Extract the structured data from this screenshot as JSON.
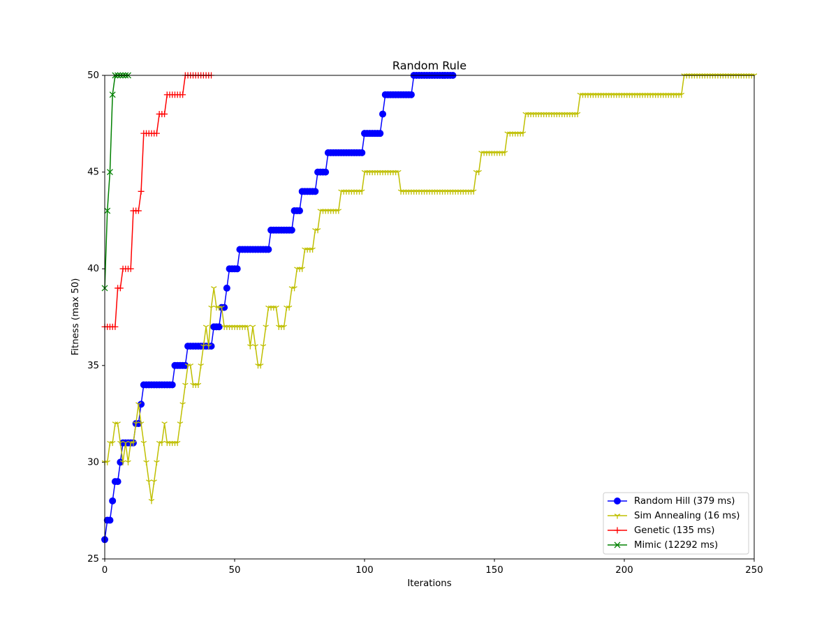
{
  "chart_data": {
    "type": "line",
    "title": "Random Rule",
    "xlabel": "Iterations",
    "ylabel": "Fitness (max 50)",
    "xlim": [
      0,
      250
    ],
    "xticks": [
      0,
      50,
      100,
      150,
      200,
      250
    ],
    "ylim": [
      25,
      50
    ],
    "yticks": [
      25,
      30,
      35,
      40,
      45,
      50
    ],
    "legend": "lower right",
    "series": [
      {
        "name": "Random Hill (379 ms)",
        "color": "#0000ff",
        "marker": "o",
        "x": [
          0,
          1,
          2,
          3,
          4,
          5,
          6,
          7,
          8,
          9,
          10,
          11,
          12,
          13,
          14,
          15,
          16,
          17,
          18,
          19,
          20,
          21,
          22,
          23,
          24,
          25,
          26,
          27,
          28,
          29,
          30,
          31,
          32,
          33,
          34,
          35,
          36,
          37,
          38,
          39,
          40,
          41,
          42,
          43,
          44,
          45,
          46,
          47,
          48,
          49,
          50,
          51,
          52,
          53,
          54,
          55,
          56,
          57,
          58,
          59,
          60,
          61,
          62,
          63,
          64,
          65,
          66,
          67,
          68,
          69,
          70,
          71,
          72,
          73,
          74,
          75,
          76,
          77,
          78,
          79,
          80,
          81,
          82,
          83,
          84,
          85,
          86,
          87,
          88,
          89,
          90,
          91,
          92,
          93,
          94,
          95,
          96,
          97,
          98,
          99,
          100,
          101,
          102,
          103,
          104,
          105,
          106,
          107,
          108,
          109,
          110,
          111,
          112,
          113,
          114,
          115,
          116,
          117,
          118,
          119,
          120,
          121,
          122,
          123,
          124,
          125,
          126,
          127,
          128,
          129,
          130,
          131,
          132,
          133,
          134
        ],
        "values": [
          26,
          27,
          27,
          28,
          29,
          29,
          30,
          31,
          31,
          31,
          31,
          31,
          32,
          32,
          33,
          34,
          34,
          34,
          34,
          34,
          34,
          34,
          34,
          34,
          34,
          34,
          34,
          35,
          35,
          35,
          35,
          35,
          36,
          36,
          36,
          36,
          36,
          36,
          36,
          36,
          36,
          36,
          37,
          37,
          37,
          38,
          38,
          39,
          40,
          40,
          40,
          40,
          41,
          41,
          41,
          41,
          41,
          41,
          41,
          41,
          41,
          41,
          41,
          41,
          42,
          42,
          42,
          42,
          42,
          42,
          42,
          42,
          42,
          43,
          43,
          43,
          44,
          44,
          44,
          44,
          44,
          44,
          45,
          45,
          45,
          45,
          46,
          46,
          46,
          46,
          46,
          46,
          46,
          46,
          46,
          46,
          46,
          46,
          46,
          46,
          47,
          47,
          47,
          47,
          47,
          47,
          47,
          48,
          49,
          49,
          49,
          49,
          49,
          49,
          49,
          49,
          49,
          49,
          49,
          50,
          50,
          50,
          50,
          50,
          50,
          50,
          50,
          50,
          50,
          50,
          50,
          50,
          50,
          50,
          50
        ]
      },
      {
        "name": "Sim Annealing (16 ms)",
        "color": "#bfbf00",
        "marker": "1",
        "x": [
          0,
          1,
          2,
          3,
          4,
          5,
          6,
          7,
          8,
          9,
          10,
          11,
          12,
          13,
          14,
          15,
          16,
          17,
          18,
          19,
          20,
          21,
          22,
          23,
          24,
          25,
          26,
          27,
          28,
          29,
          30,
          31,
          32,
          33,
          34,
          35,
          36,
          37,
          38,
          39,
          40,
          41,
          42,
          43,
          44,
          45,
          46,
          47,
          48,
          49,
          50,
          51,
          52,
          53,
          54,
          55,
          56,
          57,
          58,
          59,
          60,
          61,
          62,
          63,
          64,
          65,
          66,
          67,
          68,
          69,
          70,
          71,
          72,
          73,
          74,
          75,
          76,
          77,
          78,
          79,
          80,
          81,
          82,
          83,
          84,
          85,
          86,
          87,
          88,
          89,
          90,
          91,
          92,
          93,
          94,
          95,
          96,
          97,
          98,
          99,
          100,
          101,
          102,
          103,
          104,
          105,
          106,
          107,
          108,
          109,
          110,
          111,
          112,
          113,
          114,
          115,
          116,
          117,
          118,
          119,
          120,
          121,
          122,
          123,
          124,
          125,
          126,
          127,
          128,
          129,
          130,
          131,
          132,
          133,
          134,
          135,
          136,
          137,
          138,
          139,
          140,
          141,
          142,
          143,
          144,
          145,
          146,
          147,
          148,
          149,
          150,
          151,
          152,
          153,
          154,
          155,
          156,
          157,
          158,
          159,
          160,
          161,
          162,
          163,
          164,
          165,
          166,
          167,
          168,
          169,
          170,
          171,
          172,
          173,
          174,
          175,
          176,
          177,
          178,
          179,
          180,
          181,
          182,
          183,
          184,
          185,
          186,
          187,
          188,
          189,
          190,
          191,
          192,
          193,
          194,
          195,
          196,
          197,
          198,
          199,
          200,
          201,
          202,
          203,
          204,
          205,
          206,
          207,
          208,
          209,
          210,
          211,
          212,
          213,
          214,
          215,
          216,
          217,
          218,
          219,
          220,
          221,
          222,
          223,
          224,
          225,
          226,
          227,
          228,
          229,
          230,
          231,
          232,
          233,
          234,
          235,
          236,
          237,
          238,
          239,
          240,
          241,
          242,
          243,
          244,
          245,
          246,
          247,
          248,
          249,
          250
        ],
        "values": [
          30,
          30,
          31,
          31,
          32,
          32,
          31,
          30,
          31,
          30,
          31,
          31,
          32,
          33,
          32,
          31,
          30,
          29,
          28,
          29,
          30,
          31,
          31,
          32,
          31,
          31,
          31,
          31,
          31,
          32,
          33,
          34,
          35,
          35,
          34,
          34,
          34,
          35,
          36,
          37,
          36,
          38,
          39,
          38,
          38,
          38,
          37,
          37,
          37,
          37,
          37,
          37,
          37,
          37,
          37,
          37,
          36,
          37,
          36,
          35,
          35,
          36,
          37,
          38,
          38,
          38,
          38,
          37,
          37,
          37,
          38,
          38,
          39,
          39,
          40,
          40,
          40,
          41,
          41,
          41,
          41,
          42,
          42,
          43,
          43,
          43,
          43,
          43,
          43,
          43,
          43,
          44,
          44,
          44,
          44,
          44,
          44,
          44,
          44,
          44,
          45,
          45,
          45,
          45,
          45,
          45,
          45,
          45,
          45,
          45,
          45,
          45,
          45,
          45,
          44,
          44,
          44,
          44,
          44,
          44,
          44,
          44,
          44,
          44,
          44,
          44,
          44,
          44,
          44,
          44,
          44,
          44,
          44,
          44,
          44,
          44,
          44,
          44,
          44,
          44,
          44,
          44,
          44,
          45,
          45,
          46,
          46,
          46,
          46,
          46,
          46,
          46,
          46,
          46,
          46,
          47,
          47,
          47,
          47,
          47,
          47,
          47,
          48,
          48,
          48,
          48,
          48,
          48,
          48,
          48,
          48,
          48,
          48,
          48,
          48,
          48,
          48,
          48,
          48,
          48,
          48,
          48,
          48,
          49,
          49,
          49,
          49,
          49,
          49,
          49,
          49,
          49,
          49,
          49,
          49,
          49,
          49,
          49,
          49,
          49,
          49,
          49,
          49,
          49,
          49,
          49,
          49,
          49,
          49,
          49,
          49,
          49,
          49,
          49,
          49,
          49,
          49,
          49,
          49,
          49,
          49,
          49,
          49,
          50,
          50,
          50,
          50,
          50,
          50,
          50,
          50,
          50,
          50,
          50,
          50,
          50,
          50,
          50,
          50,
          50,
          50,
          50,
          50,
          50,
          50,
          50,
          50,
          50,
          50,
          50,
          50
        ]
      },
      {
        "name": "Genetic (135 ms)",
        "color": "#ff0000",
        "marker": "+",
        "x": [
          0,
          1,
          2,
          3,
          4,
          5,
          6,
          7,
          8,
          9,
          10,
          11,
          12,
          13,
          14,
          15,
          16,
          17,
          18,
          19,
          20,
          21,
          22,
          23,
          24,
          25,
          26,
          27,
          28,
          29,
          30,
          31,
          32,
          33,
          34,
          35,
          36,
          37,
          38,
          39,
          40,
          41
        ],
        "values": [
          37,
          37,
          37,
          37,
          37,
          39,
          39,
          40,
          40,
          40,
          40,
          43,
          43,
          43,
          44,
          47,
          47,
          47,
          47,
          47,
          47,
          48,
          48,
          48,
          49,
          49,
          49,
          49,
          49,
          49,
          49,
          50,
          50,
          50,
          50,
          50,
          50,
          50,
          50,
          50,
          50,
          50
        ]
      },
      {
        "name": "Mimic (12292 ms)",
        "color": "#008000",
        "marker": "x",
        "x": [
          0,
          1,
          2,
          3,
          4,
          5,
          6,
          7,
          8,
          9
        ],
        "values": [
          39,
          43,
          45,
          49,
          50,
          50,
          50,
          50,
          50,
          50
        ]
      }
    ]
  }
}
